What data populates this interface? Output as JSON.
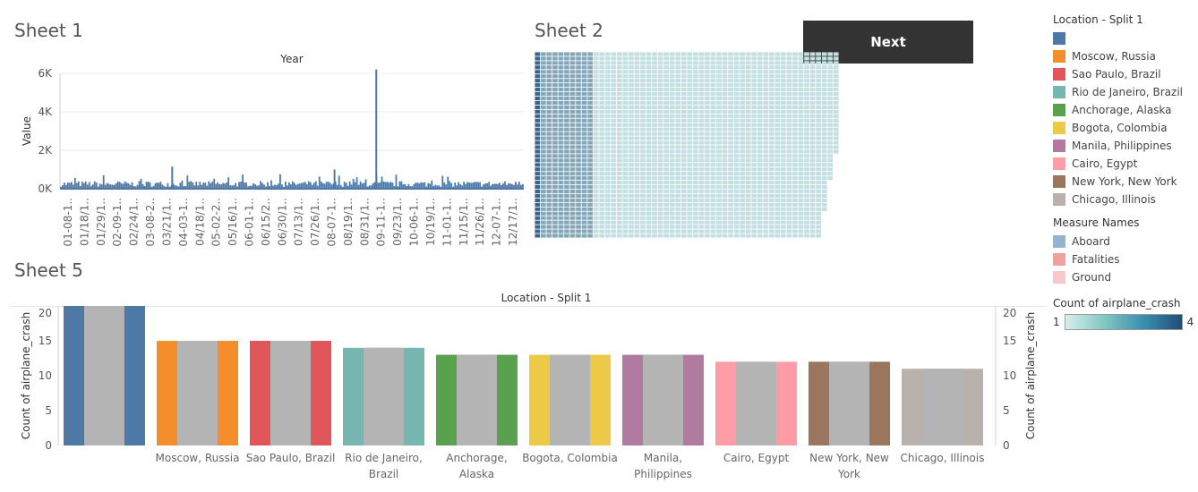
{
  "sheets": {
    "sheet1_title": "Sheet 1",
    "sheet2_title": "Sheet 2",
    "sheet5_title": "Sheet 5"
  },
  "next_button": {
    "label": "Next"
  },
  "legend_location": {
    "title": "Location - Split 1",
    "items": [
      {
        "label": "",
        "color": "#4e79a7"
      },
      {
        "label": "Moscow, Russia",
        "color": "#f28e2b"
      },
      {
        "label": "Sao Paulo, Brazil",
        "color": "#e15759"
      },
      {
        "label": "Rio de Janeiro, Brazil",
        "color": "#76b7b2"
      },
      {
        "label": "Anchorage, Alaska",
        "color": "#59a14f"
      },
      {
        "label": "Bogota, Colombia",
        "color": "#edc948"
      },
      {
        "label": "Manila, Philippines",
        "color": "#b07aa1"
      },
      {
        "label": "Cairo, Egypt",
        "color": "#ff9da7"
      },
      {
        "label": "New York, New York",
        "color": "#9c755f"
      },
      {
        "label": "Chicago, Illinois",
        "color": "#bab0ac"
      }
    ]
  },
  "legend_measures": {
    "title": "Measure Names",
    "items": [
      {
        "label": "Aboard",
        "color": "#96b3cf"
      },
      {
        "label": "Fatalities",
        "color": "#f1a0a0"
      },
      {
        "label": "Ground",
        "color": "#f8c8cc"
      }
    ]
  },
  "legend_count": {
    "title": "Count of airplane_crash",
    "min_label": "1",
    "max_label": "4"
  },
  "chart_data": [
    {
      "type": "bar",
      "title": "Year",
      "ylabel": "Value",
      "xlabel": "",
      "ylim": [
        0,
        6000
      ],
      "yticks": [
        0,
        2000,
        4000,
        6000
      ],
      "ytick_labels": [
        "0K",
        "2K",
        "4K",
        "6K"
      ],
      "x_tick_labels": [
        "01-08-1..",
        "01/18/1..",
        "01/29/1..",
        "02-09-1..",
        "02/24/1..",
        "03-08-2..",
        "03/21/1..",
        "04-03-1..",
        "04/18/1..",
        "05-02-2..",
        "05/16/1..",
        "06-01-1..",
        "06/15/2..",
        "06/30/1..",
        "07/13/1..",
        "07/26/1..",
        "08-07-1..",
        "08/19/1..",
        "08/31/1..",
        "09-11-1..",
        "09/23/1..",
        "10-06-1..",
        "10/19/1..",
        "11-01-1..",
        "11/15/1..",
        "11/26/1..",
        "12-07-1..",
        "12/17/1.."
      ],
      "spikes": [
        {
          "index_fraction": 0.24,
          "value": 1150
        },
        {
          "index_fraction": 0.59,
          "value": 1000
        },
        {
          "index_fraction": 0.68,
          "value": 6200
        }
      ],
      "baseline_range": [
        100,
        400
      ]
    },
    {
      "type": "heatmap",
      "title": "",
      "color_range": [
        "#d6efec",
        "#1f4e7a"
      ],
      "value_range": [
        1,
        4
      ]
    },
    {
      "type": "bar",
      "title": "Location - Split 1",
      "ylabel": "Count of airplane_crash",
      "ylabel_right": "Count of airplane_crash",
      "ylim": [
        0,
        20
      ],
      "yticks": [
        0,
        5,
        10,
        15,
        20
      ],
      "categories": [
        "",
        "Moscow, Russia",
        "Sao Paulo, Brazil",
        "Rio de Janeiro, Brazil",
        "Anchorage, Alaska",
        "Bogota, Colombia",
        "Manila, Philippines",
        "Cairo, Egypt",
        "New York, New York",
        "Chicago, Illinois"
      ],
      "category_display": [
        [
          ""
        ],
        [
          "Moscow, Russia"
        ],
        [
          "Sao Paulo, Brazil"
        ],
        [
          "Rio de Janeiro,",
          "Brazil"
        ],
        [
          "Anchorage,",
          "Alaska"
        ],
        [
          "Bogota, Colombia"
        ],
        [
          "Manila,",
          "Philippines"
        ],
        [
          "Cairo, Egypt"
        ],
        [
          "New York, New",
          "York"
        ],
        [
          "Chicago, Illinois"
        ]
      ],
      "values": [
        20,
        15,
        15,
        14,
        13,
        13,
        13,
        12,
        12,
        11
      ],
      "colors": [
        "#4e79a7",
        "#f28e2b",
        "#e15759",
        "#76b7b2",
        "#59a14f",
        "#edc948",
        "#b07aa1",
        "#ff9da7",
        "#9c755f",
        "#bab0ac"
      ],
      "overlay_color": "#b4b4b4"
    }
  ]
}
